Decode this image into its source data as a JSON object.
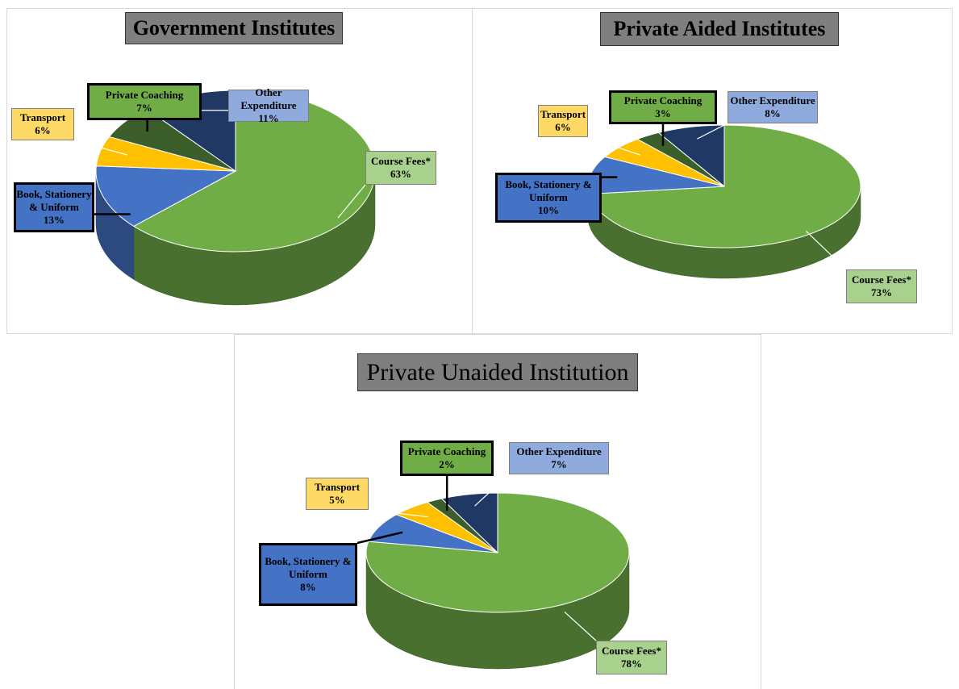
{
  "chart_data": [
    {
      "type": "pie3d",
      "title": "Government Institutes",
      "categories": [
        "Course Fees*",
        "Book, Stationery & Uniform",
        "Transport",
        "Private Coaching",
        "Other Expenditure"
      ],
      "values": [
        63,
        13,
        6,
        7,
        11
      ],
      "value_labels": [
        "63%",
        "13%",
        "6%",
        "7%",
        "11%"
      ],
      "colors": [
        "#70ad47",
        "#4472c4",
        "#ffc000",
        "#3b5e2a",
        "#203864"
      ],
      "label_colors": [
        "#a9d18e",
        "#4472c4",
        "#ffd966",
        "#70ad47",
        "#8faadc"
      ]
    },
    {
      "type": "pie3d",
      "title": "Private Aided Institutes",
      "categories": [
        "Course Fees*",
        "Book, Stationery & Uniform",
        "Transport",
        "Private Coaching",
        "Other Expenditure"
      ],
      "values": [
        73,
        10,
        6,
        3,
        8
      ],
      "value_labels": [
        "73%",
        "10%",
        "6%",
        "3%",
        "8%"
      ],
      "colors": [
        "#70ad47",
        "#4472c4",
        "#ffc000",
        "#3b5e2a",
        "#203864"
      ],
      "label_colors": [
        "#a9d18e",
        "#4472c4",
        "#ffd966",
        "#70ad47",
        "#8faadc"
      ]
    },
    {
      "type": "pie3d",
      "title": "Private Unaided Institution",
      "categories": [
        "Course Fees*",
        "Book, Stationery & Uniform",
        "Transport",
        "Private Coaching",
        "Other Expenditure"
      ],
      "values": [
        78,
        8,
        5,
        2,
        7
      ],
      "value_labels": [
        "78%",
        "8%",
        "5%",
        "2%",
        "7%"
      ],
      "colors": [
        "#70ad47",
        "#4472c4",
        "#ffc000",
        "#3b5e2a",
        "#203864"
      ],
      "label_colors": [
        "#a9d18e",
        "#4472c4",
        "#ffd966",
        "#70ad47",
        "#8faadc"
      ]
    }
  ]
}
